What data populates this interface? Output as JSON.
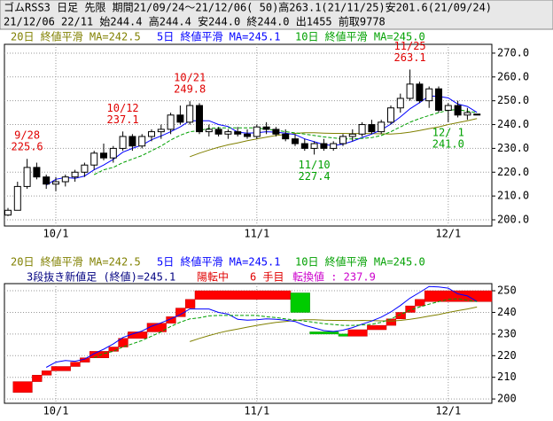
{
  "header": {
    "line1": "ゴムRSS3 日足 先限 期間21/09/24～21/12/06( 50)高263.1(21/11/25)安201.6(21/09/24)",
    "line2": "21/12/06 22/11 始244.4 高244.4 安244.0 終244.0 出1455 前取9778"
  },
  "chart_data": [
    {
      "type": "candlestick",
      "categories": [
        null,
        null,
        null,
        null,
        null,
        "10/1",
        null,
        null,
        null,
        null,
        null,
        null,
        null,
        null,
        null,
        null,
        null,
        null,
        null,
        null,
        null,
        null,
        null,
        null,
        null,
        null,
        "11/1",
        null,
        null,
        null,
        null,
        null,
        null,
        null,
        null,
        null,
        null,
        null,
        null,
        null,
        null,
        null,
        null,
        null,
        null,
        null,
        "12/1",
        null,
        null,
        null
      ],
      "open": [
        202,
        204,
        214,
        222,
        218,
        215,
        216,
        218,
        220,
        223,
        228,
        226,
        230,
        235,
        231,
        235,
        237,
        238,
        244,
        241,
        248,
        237,
        238,
        236,
        237,
        236,
        235,
        239,
        238,
        236,
        234,
        232,
        230,
        232,
        230,
        232,
        235,
        236,
        240,
        237,
        241,
        247,
        251,
        257,
        250,
        255,
        246,
        248,
        244,
        244.4
      ],
      "high": [
        205,
        216,
        225.6,
        224,
        219,
        218,
        219,
        221,
        224,
        229,
        232,
        231,
        237.1,
        236,
        236,
        238,
        240,
        245,
        248,
        249.8,
        249,
        240,
        239,
        238,
        239,
        238,
        240,
        241,
        239,
        238,
        236,
        234,
        233,
        234,
        233,
        236,
        238,
        241,
        242,
        242,
        248,
        253,
        263.1,
        258,
        256,
        256,
        249,
        250,
        247,
        244.4
      ],
      "low": [
        201.6,
        204,
        213,
        217,
        213,
        212,
        214,
        216,
        218,
        221,
        225,
        224,
        229,
        229,
        230,
        233,
        234,
        236,
        240,
        240,
        236,
        235,
        235,
        234,
        235,
        234,
        234,
        236,
        235,
        233,
        231,
        229,
        227.4,
        229,
        229,
        231,
        233,
        235,
        236,
        236,
        240,
        245,
        250,
        249,
        247,
        245,
        241.0,
        243,
        242,
        244.0
      ],
      "close": [
        204,
        214,
        222,
        218,
        215,
        216,
        218,
        220,
        223,
        228,
        226,
        230,
        235,
        231,
        235,
        237,
        238,
        244,
        241,
        248,
        237,
        238,
        236,
        237,
        236,
        235,
        239,
        238,
        236,
        234,
        232,
        230,
        232,
        230,
        232,
        235,
        236,
        240,
        237,
        241,
        247,
        251,
        257,
        250,
        255,
        246,
        248,
        244,
        245,
        244.0
      ],
      "up_color": "#ffffff",
      "down_color": "#000000",
      "series": [
        {
          "name": "20日 終値平滑 MA=242.5",
          "color": "#808000",
          "dashed": false,
          "values": [
            null,
            null,
            null,
            null,
            null,
            null,
            null,
            null,
            null,
            null,
            null,
            null,
            null,
            null,
            null,
            null,
            null,
            null,
            null,
            226.5,
            228,
            229.3,
            230.5,
            231.5,
            232.3,
            233.2,
            234,
            234.7,
            235.4,
            235.8,
            236.3,
            236.6,
            236.6,
            236.4,
            236.3,
            236.3,
            236.2,
            236.3,
            236.2,
            236.1,
            236,
            236.3,
            236.8,
            237.5,
            238.3,
            239,
            240,
            240.8,
            241.6,
            242.5
          ]
        },
        {
          "name": "5日 終値平滑 MA=245.1",
          "color": "#0000ff",
          "dashed": false,
          "values": [
            null,
            null,
            null,
            null,
            214.6,
            217,
            217.8,
            217.4,
            218.4,
            221,
            223,
            225.4,
            228.4,
            230,
            231.4,
            233.6,
            235.2,
            237,
            239,
            241.6,
            241.6,
            241.6,
            240,
            239.2,
            236.8,
            236.4,
            236.6,
            237,
            236.8,
            236.4,
            235.8,
            234,
            232.8,
            231.6,
            231.2,
            231.8,
            233,
            234.6,
            236,
            237.8,
            240.2,
            243.2,
            246.6,
            249.2,
            252,
            251.8,
            251.2,
            248.6,
            247.6,
            245.1
          ]
        },
        {
          "name": "10日 終値平滑 MA=245.0",
          "color": "#00a000",
          "dashed": true,
          "values": [
            null,
            null,
            null,
            null,
            null,
            null,
            null,
            null,
            null,
            219,
            221,
            222,
            224,
            225.5,
            227,
            229,
            231,
            233.5,
            235.5,
            237,
            237.5,
            238.4,
            238.6,
            238.6,
            238.6,
            238.6,
            238.6,
            238,
            237.6,
            237,
            236.5,
            236,
            235.4,
            234.8,
            234.4,
            234,
            234,
            234.2,
            234.5,
            235.4,
            237,
            239,
            241,
            242.5,
            243.8,
            245,
            246,
            246.3,
            245.6,
            245.0
          ]
        }
      ],
      "annotations": [
        {
          "date": "9/28",
          "label": "225.6",
          "value": 225.6,
          "index": 2,
          "position": "above",
          "color": "#e00000"
        },
        {
          "date": "10/12",
          "label": "237.1",
          "value": 237.1,
          "index": 12,
          "position": "above",
          "color": "#e00000"
        },
        {
          "date": "10/21",
          "label": "249.8",
          "value": 249.8,
          "index": 19,
          "position": "above",
          "color": "#e00000"
        },
        {
          "date": "11/25",
          "label": "263.1",
          "value": 263.1,
          "index": 42,
          "position": "above",
          "color": "#e00000"
        },
        {
          "date": "11/10",
          "label": "227.4",
          "value": 227.4,
          "index": 32,
          "position": "below",
          "color": "#00a000"
        },
        {
          "date": "12/ 1",
          "label": "241.0",
          "value": 241.0,
          "index": 46,
          "position": "below",
          "color": "#00a000"
        }
      ],
      "ylim": [
        197.4,
        273.7
      ],
      "yticks": [
        {
          "value": 200,
          "label": "200.0"
        },
        {
          "value": 210,
          "label": "210.0"
        },
        {
          "value": 220,
          "label": "220.0"
        },
        {
          "value": 230,
          "label": "230.0"
        },
        {
          "value": 240,
          "label": "240.0"
        },
        {
          "value": 250,
          "label": "250.0"
        },
        {
          "value": 260,
          "label": "260.0"
        },
        {
          "value": 270,
          "label": "270.0"
        }
      ],
      "grid": true
    },
    {
      "type": "line-break",
      "categories": [
        null,
        null,
        null,
        null,
        null,
        "10/1",
        null,
        null,
        null,
        null,
        null,
        null,
        null,
        null,
        null,
        null,
        null,
        null,
        null,
        null,
        null,
        null,
        null,
        null,
        null,
        null,
        "11/1",
        null,
        null,
        null,
        null,
        null,
        null,
        null,
        null,
        null,
        null,
        null,
        null,
        null,
        null,
        null,
        null,
        null,
        null,
        null,
        "12/1",
        null,
        null,
        null
      ],
      "status": [
        {
          "text": "3段抜き新値足 (終値)=245.1",
          "color": "#000080"
        },
        {
          "text": "陽転中",
          "color": "#e00000"
        },
        {
          "text": "6 手目",
          "color": "#e00000"
        },
        {
          "text": "転換値 : 237.9",
          "color": "#cc00cc"
        }
      ],
      "up_color": "#ff0000",
      "down_color": "#00cc00",
      "bricks": [
        {
          "index": 1,
          "from": 203,
          "to": 208
        },
        {
          "index": 3,
          "from": 208,
          "to": 211
        },
        {
          "index": 4,
          "from": 211,
          "to": 213
        },
        {
          "index": 5,
          "from": 213,
          "to": 215
        },
        {
          "index": 7,
          "from": 215,
          "to": 217
        },
        {
          "index": 8,
          "from": 217,
          "to": 219
        },
        {
          "index": 9,
          "from": 219,
          "to": 222
        },
        {
          "index": 11,
          "from": 222,
          "to": 224
        },
        {
          "index": 12,
          "from": 224,
          "to": 228
        },
        {
          "index": 13,
          "from": 228,
          "to": 231
        },
        {
          "index": 15,
          "from": 231,
          "to": 235
        },
        {
          "index": 17,
          "from": 235,
          "to": 238
        },
        {
          "index": 18,
          "from": 238,
          "to": 242
        },
        {
          "index": 19,
          "from": 242,
          "to": 246
        },
        {
          "index": 20,
          "from": 246,
          "to": 250
        },
        {
          "index": 30,
          "from": 249,
          "to": 240
        },
        {
          "index": 32,
          "from": 231,
          "to": 230
        },
        {
          "index": 35,
          "from": 230,
          "to": 229
        },
        {
          "index": 36,
          "from": 229,
          "to": 232
        },
        {
          "index": 38,
          "from": 232,
          "to": 234
        },
        {
          "index": 40,
          "from": 234,
          "to": 237
        },
        {
          "index": 41,
          "from": 237,
          "to": 240
        },
        {
          "index": 42,
          "from": 240,
          "to": 243
        },
        {
          "index": 43,
          "from": 243,
          "to": 246
        },
        {
          "index": 44,
          "from": 245,
          "to": 250
        }
      ],
      "series": [
        {
          "name": "20日 終値平滑 MA=242.5",
          "color": "#808000",
          "dashed": false,
          "values": [
            null,
            null,
            null,
            null,
            null,
            null,
            null,
            null,
            null,
            null,
            null,
            null,
            null,
            null,
            null,
            null,
            null,
            null,
            null,
            226.5,
            228,
            229.3,
            230.5,
            231.5,
            232.3,
            233.2,
            234,
            234.7,
            235.4,
            235.8,
            236.3,
            236.6,
            236.6,
            236.4,
            236.3,
            236.3,
            236.2,
            236.3,
            236.2,
            236.1,
            236,
            236.3,
            236.8,
            237.5,
            238.3,
            239,
            240,
            240.8,
            241.6,
            242.5
          ]
        },
        {
          "name": "5日 終値平滑 MA=245.1",
          "color": "#0000ff",
          "dashed": false,
          "values": [
            null,
            null,
            null,
            null,
            214.6,
            217,
            217.8,
            217.4,
            218.4,
            221,
            223,
            225.4,
            228.4,
            230,
            231.4,
            233.6,
            235.2,
            237,
            239,
            241.6,
            241.6,
            241.6,
            240,
            239.2,
            236.8,
            236.4,
            236.6,
            237,
            236.8,
            236.4,
            235.8,
            234,
            232.8,
            231.6,
            231.2,
            231.8,
            233,
            234.6,
            236,
            237.8,
            240.2,
            243.2,
            246.6,
            249.2,
            252,
            251.8,
            251.2,
            248.6,
            247.6,
            245.1
          ]
        },
        {
          "name": "10日 終値平滑 MA=245.0",
          "color": "#00a000",
          "dashed": true,
          "values": [
            null,
            null,
            null,
            null,
            null,
            null,
            null,
            null,
            null,
            219,
            221,
            222,
            224,
            225.5,
            227,
            229,
            231,
            233.5,
            235.5,
            237,
            237.5,
            238.4,
            238.6,
            238.6,
            238.6,
            238.6,
            238.6,
            238,
            237.6,
            237,
            236.5,
            236,
            235.4,
            234.8,
            234.4,
            234,
            234,
            234.2,
            234.5,
            235.4,
            237,
            239,
            241,
            242.5,
            243.8,
            245,
            246,
            246.3,
            245.6,
            245.0
          ]
        }
      ],
      "ylim": [
        198,
        253.3
      ],
      "yticks": [
        200,
        210,
        220,
        230,
        240,
        250
      ],
      "grid": true
    }
  ]
}
